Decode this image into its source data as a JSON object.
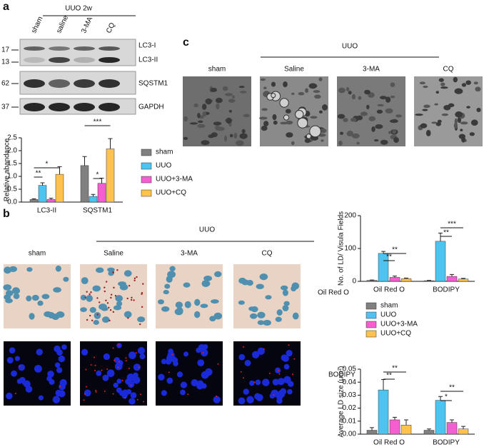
{
  "panel_a": {
    "label": "a",
    "group_label": "UUO 2w",
    "lanes": [
      "sham",
      "saline",
      "3-MA",
      "CQ"
    ],
    "markers": [
      "17",
      "13",
      "62",
      "37"
    ],
    "bands": [
      "LC3-I",
      "LC3-II",
      "SQSTM1",
      "GAPDH"
    ]
  },
  "panel_b": {
    "label": "b",
    "group_label": "UUO",
    "columns": [
      "sham",
      "Saline",
      "3-MA",
      "CQ"
    ],
    "rows": [
      "Oil Red  O",
      "BODIPY"
    ]
  },
  "panel_c": {
    "label": "c",
    "group_label": "UUO",
    "columns": [
      "sham",
      "Saline",
      "3-MA",
      "CQ"
    ]
  },
  "chart_data": [
    {
      "type": "bar",
      "ylabel": "Relative abandance",
      "categories": [
        "LC3-II",
        "SQSTM1"
      ],
      "ylim": [
        0,
        2.5
      ],
      "yticks": [
        {
          "value": 0,
          "label": "0.0"
        },
        {
          "value": 0.5,
          "label": "0.5"
        },
        {
          "value": 1,
          "label": "1.0"
        },
        {
          "value": 1.5,
          "label": "1.5"
        },
        {
          "value": 2,
          "label": "2.0"
        },
        {
          "value": 2.5,
          "label": "2.5"
        }
      ],
      "legend": "right",
      "series": [
        {
          "name": "sham",
          "color": "#808080",
          "values": [
            0.1,
            1.42
          ],
          "errors": [
            0.03,
            0.35
          ]
        },
        {
          "name": "UUO",
          "color": "#4dc4f0",
          "values": [
            0.65,
            0.22
          ],
          "errors": [
            0.1,
            0.08
          ]
        },
        {
          "name": "UUO+3-MA",
          "color": "#f35fd0",
          "values": [
            0.1,
            0.73
          ],
          "errors": [
            0.05,
            0.2
          ]
        },
        {
          "name": "UUO+CQ",
          "color": "#ffc34d",
          "values": [
            1.08,
            2.07
          ],
          "errors": [
            0.3,
            0.4
          ]
        }
      ],
      "annotations": [
        "**",
        "*",
        "*",
        "***"
      ]
    },
    {
      "type": "bar",
      "ylabel": "No. of LD/ Visula Fields",
      "categories": [
        "Oil Red O",
        "BODIPY"
      ],
      "ylim": [
        0,
        200
      ],
      "yticks": [
        0,
        100,
        200
      ],
      "legend": "below",
      "series": [
        {
          "name": "sham",
          "color": "#808080",
          "values": [
            3,
            2
          ],
          "errors": [
            1,
            1
          ]
        },
        {
          "name": "UUO",
          "color": "#4dc4f0",
          "values": [
            85,
            122
          ],
          "errors": [
            6,
            25
          ]
        },
        {
          "name": "UUO+3-MA",
          "color": "#f35fd0",
          "values": [
            12,
            15
          ],
          "errors": [
            4,
            6
          ]
        },
        {
          "name": "UUO+CQ",
          "color": "#ffc34d",
          "values": [
            8,
            7
          ],
          "errors": [
            2,
            2
          ]
        }
      ],
      "annotations": [
        "**",
        "**",
        "**",
        "***"
      ]
    },
    {
      "type": "bar",
      "ylabel": "Average LD size (μm²)",
      "categories": [
        "Oil Red O",
        "BODIPY"
      ],
      "ylim": [
        0,
        0.05
      ],
      "yticks": [
        {
          "value": 0,
          "label": "0.00"
        },
        {
          "value": 0.01,
          "label": "0.01"
        },
        {
          "value": 0.02,
          "label": "0.02"
        },
        {
          "value": 0.03,
          "label": "0.03"
        },
        {
          "value": 0.04,
          "label": "0.04"
        },
        {
          "value": 0.05,
          "label": "0.05"
        }
      ],
      "series": [
        {
          "color": "#808080",
          "values": [
            0.003,
            0.003
          ],
          "errors": [
            0.002,
            0.001
          ]
        },
        {
          "color": "#4dc4f0",
          "values": [
            0.034,
            0.026
          ],
          "errors": [
            0.008,
            0.003
          ]
        },
        {
          "color": "#f35fd0",
          "values": [
            0.011,
            0.009
          ],
          "errors": [
            0.002,
            0.002
          ]
        },
        {
          "color": "#ffc34d",
          "values": [
            0.007,
            0.004
          ],
          "errors": [
            0.004,
            0.002
          ]
        }
      ],
      "annotations": [
        "**",
        "**",
        "*",
        "**"
      ]
    }
  ]
}
